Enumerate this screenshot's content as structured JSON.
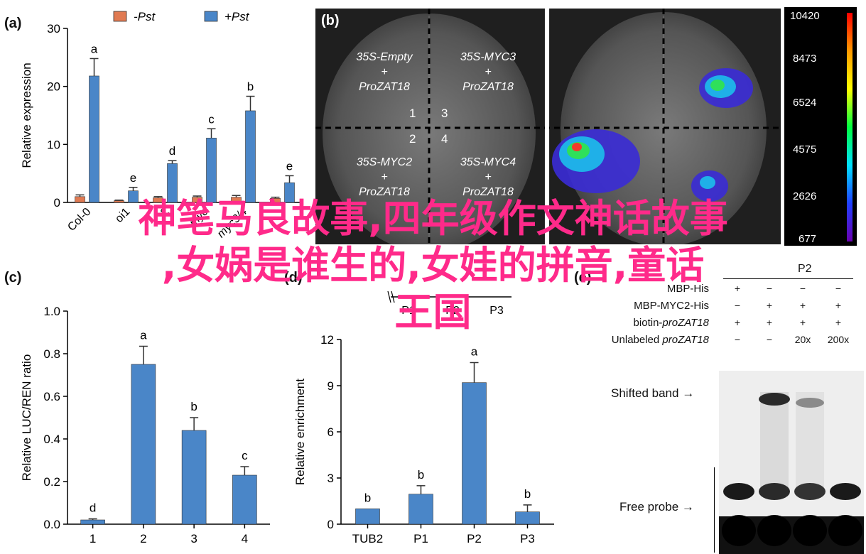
{
  "panels": {
    "a": {
      "letter": "(a)"
    },
    "b": {
      "letter": "(b)"
    },
    "c": {
      "letter": "(c)"
    },
    "d": {
      "letter": "(d)"
    },
    "e": {
      "letter": "(e)"
    }
  },
  "overlay_text": {
    "line1": "神笔马良故事,四年级作文神话故事",
    "line2": ",女娲是谁生的,女娃的拼音,童话",
    "line3": "王国"
  },
  "chart_data": [
    {
      "panel": "a",
      "type": "bar",
      "ylabel": "Relative expression",
      "ylim": [
        0,
        30
      ],
      "yticks": [
        0,
        10,
        20,
        30
      ],
      "categories": [
        "Col-0",
        "oi1",
        "zat18-2",
        "myc2",
        "myc3/4",
        ""
      ],
      "category_labels_visible": [
        "Col-0",
        "oi1",
        "2",
        "myc",
        "myc3/4"
      ],
      "legend": [
        {
          "name": "-Pst",
          "color": "#e07a52"
        },
        {
          "name": "+Pst",
          "color": "#4a86c8"
        }
      ],
      "series": [
        {
          "name": "-Pst",
          "values": [
            1.0,
            0.3,
            0.8,
            0.9,
            0.9,
            0.7
          ],
          "errors": [
            0.3,
            0.1,
            0.2,
            0.2,
            0.3,
            0.2
          ]
        },
        {
          "name": "+Pst",
          "values": [
            21.8,
            2.0,
            6.7,
            11.1,
            15.8,
            3.4
          ],
          "errors": [
            3.0,
            0.6,
            0.5,
            1.6,
            2.5,
            1.2
          ],
          "letters": [
            "a",
            "e",
            "d",
            "c",
            "b",
            "e"
          ]
        }
      ]
    },
    {
      "panel": "c",
      "type": "bar",
      "ylabel": "Relative LUC/REN ratio",
      "ylim": [
        0,
        1.0
      ],
      "yticks": [
        "0.0",
        "0.2",
        "0.4",
        "0.6",
        "0.8",
        "1.0"
      ],
      "categories": [
        "1",
        "2",
        "3",
        "4"
      ],
      "values": [
        0.02,
        0.75,
        0.44,
        0.23
      ],
      "errors": [
        0.005,
        0.085,
        0.06,
        0.04
      ],
      "letters": [
        "d",
        "a",
        "b",
        "c"
      ],
      "color": "#4a86c8"
    },
    {
      "panel": "d",
      "type": "bar",
      "ylabel": "Relative enrichment",
      "ylim": [
        0,
        12
      ],
      "yticks": [
        0,
        3,
        6,
        9,
        12
      ],
      "categories": [
        "TUB2",
        "P1",
        "P2",
        "P3"
      ],
      "top_labels": [
        "P1",
        "P2",
        "P3"
      ],
      "values": [
        1.0,
        1.95,
        9.2,
        0.8
      ],
      "errors": [
        0,
        0.55,
        1.3,
        0.45
      ],
      "letters": [
        "b",
        "b",
        "a",
        "b"
      ],
      "color": "#4a86c8"
    }
  ],
  "panel_b": {
    "labels": [
      {
        "line1": "35S-Empty",
        "line2": "+",
        "line3": "ProZAT18"
      },
      {
        "line1": "35S-MYC3",
        "line2": "+",
        "line3": "ProZAT18"
      },
      {
        "line1": "35S-MYC2",
        "line2": "+",
        "line3": "ProZAT18"
      },
      {
        "line1": "35S-MYC4",
        "line2": "+",
        "line3": "ProZAT18"
      }
    ],
    "quadrant_numbers": [
      "1",
      "3",
      "2",
      "4"
    ],
    "colorbar_ticks": [
      "10420",
      "8473",
      "6524",
      "4575",
      "2626",
      "677"
    ]
  },
  "panel_e": {
    "probe_label": "P2",
    "rows": [
      {
        "label": "MBP-His",
        "values": [
          "+",
          "−",
          "−",
          "−"
        ]
      },
      {
        "label": "MBP-MYC2-His",
        "values": [
          "−",
          "+",
          "+",
          "+"
        ]
      },
      {
        "label": "biotin-",
        "label_italic": "proZAT18",
        "values": [
          "+",
          "+",
          "+",
          "+"
        ]
      },
      {
        "label": "Unlabeled ",
        "label_italic": "proZAT18",
        "values": [
          "−",
          "−",
          "20x",
          "200x"
        ]
      }
    ],
    "shifted_band": "Shifted band",
    "free_probe": "Free probe"
  }
}
